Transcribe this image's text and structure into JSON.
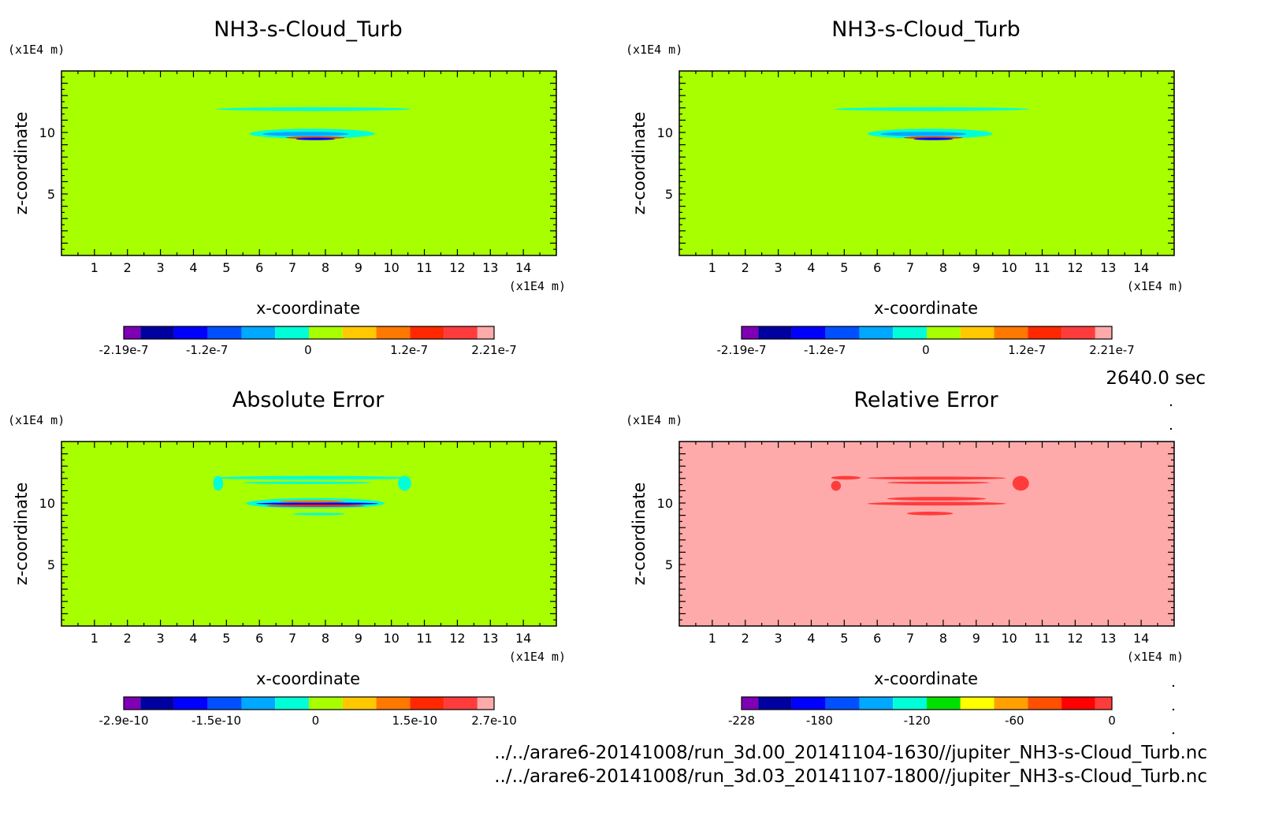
{
  "footer": {
    "time": "2640.0 sec",
    "file1": "../../arare6-20141008/run_3d.00_20141104-1630//jupiter_NH3-s-Cloud_Turb.nc",
    "file2": "../../arare6-20141008/run_3d.03_20141107-1800//jupiter_NH3-s-Cloud_Turb.nc"
  },
  "colors": {
    "background": "#a8ff00",
    "relative_background": "#ffaaaa",
    "palette_default": [
      "#7f00b4",
      "#0000a0",
      "#0000ff",
      "#0050ff",
      "#00a8ff",
      "#00ffd8",
      "#a8ff00",
      "#ffc800",
      "#ff7800",
      "#ff2800",
      "#ff3c3c",
      "#ffaaaa"
    ],
    "palette_relative": [
      "#7f00b4",
      "#0000a0",
      "#0000ff",
      "#0050ff",
      "#00a8ff",
      "#00ffd8",
      "#00e000",
      "#ffff00",
      "#ffa000",
      "#ff5000",
      "#ff0000",
      "#ff3c3c"
    ]
  },
  "chart_data": [
    {
      "type": "heatmap",
      "title": "NH3-s-Cloud_Turb",
      "xlabel": "x-coordinate",
      "ylabel": "z-coordinate",
      "x_unit": "(x1E4 m)",
      "y_unit": "(x1E4 m)",
      "xlim": [
        0,
        15
      ],
      "ylim": [
        0,
        15
      ],
      "xticks": [
        "1",
        "2",
        "3",
        "4",
        "5",
        "6",
        "7",
        "8",
        "9",
        "10",
        "11",
        "12",
        "13",
        "14"
      ],
      "yticks": [
        "5",
        "10"
      ],
      "background": "#a8ff00",
      "colorbar_ticks": [
        "-2.19e-7",
        "-1.2e-7",
        "0",
        "1.2e-7",
        "2.21e-7"
      ],
      "colorbar_range": [
        -2.19e-07,
        2.21e-07
      ],
      "features": [
        {
          "xr": [
            4.7,
            10.6
          ],
          "z": [
            11.75,
            12.05
          ],
          "color": "#00ffd8"
        },
        {
          "xr": [
            5.7,
            9.5
          ],
          "z": [
            9.5,
            10.3
          ],
          "color": "#00ffd8"
        },
        {
          "xr": [
            6.1,
            8.7
          ],
          "z": [
            9.7,
            10.05
          ],
          "color": "#00a8ff"
        },
        {
          "xr": [
            6.8,
            8.6
          ],
          "z": [
            9.5,
            9.65
          ],
          "color": "#ff2800"
        },
        {
          "xr": [
            7.1,
            8.3
          ],
          "z": [
            9.42,
            9.52
          ],
          "color": "#0000ff"
        }
      ]
    },
    {
      "type": "heatmap",
      "title": "NH3-s-Cloud_Turb",
      "xlabel": "x-coordinate",
      "ylabel": "z-coordinate",
      "x_unit": "(x1E4 m)",
      "y_unit": "(x1E4 m)",
      "xlim": [
        0,
        15
      ],
      "ylim": [
        0,
        15
      ],
      "xticks": [
        "1",
        "2",
        "3",
        "4",
        "5",
        "6",
        "7",
        "8",
        "9",
        "10",
        "11",
        "12",
        "13",
        "14"
      ],
      "yticks": [
        "5",
        "10"
      ],
      "background": "#a8ff00",
      "colorbar_ticks": [
        "-2.19e-7",
        "-1.2e-7",
        "0",
        "1.2e-7",
        "2.21e-7"
      ],
      "colorbar_range": [
        -2.19e-07,
        2.21e-07
      ],
      "features": [
        {
          "xr": [
            4.7,
            10.6
          ],
          "z": [
            11.75,
            12.05
          ],
          "color": "#00ffd8"
        },
        {
          "xr": [
            5.7,
            9.5
          ],
          "z": [
            9.5,
            10.3
          ],
          "color": "#00ffd8"
        },
        {
          "xr": [
            6.1,
            8.7
          ],
          "z": [
            9.7,
            10.05
          ],
          "color": "#00a8ff"
        },
        {
          "xr": [
            6.8,
            8.6
          ],
          "z": [
            9.5,
            9.65
          ],
          "color": "#ff2800"
        },
        {
          "xr": [
            7.1,
            8.3
          ],
          "z": [
            9.42,
            9.52
          ],
          "color": "#0000ff"
        }
      ]
    },
    {
      "type": "heatmap",
      "title": "Absolute Error",
      "xlabel": "x-coordinate",
      "ylabel": "z-coordinate",
      "x_unit": "(x1E4 m)",
      "y_unit": "(x1E4 m)",
      "xlim": [
        0,
        15
      ],
      "ylim": [
        0,
        15
      ],
      "xticks": [
        "1",
        "2",
        "3",
        "4",
        "5",
        "6",
        "7",
        "8",
        "9",
        "10",
        "11",
        "12",
        "13",
        "14"
      ],
      "yticks": [
        "5",
        "10"
      ],
      "background": "#a8ff00",
      "colorbar_ticks": [
        "-2.9e-10",
        "-1.5e-10",
        "0",
        "1.5e-10",
        "2.7e-10"
      ],
      "colorbar_range": [
        -2.9e-10,
        2.7e-10
      ],
      "features": [
        {
          "xr": [
            4.6,
            10.6
          ],
          "z": [
            11.9,
            12.2
          ],
          "color": "#00ffd8"
        },
        {
          "xr": [
            5.5,
            9.4
          ],
          "z": [
            11.55,
            11.75
          ],
          "color": "#00ffd8"
        },
        {
          "xr": [
            4.6,
            4.9
          ],
          "z": [
            11.0,
            12.2
          ],
          "color": "#00ffd8"
        },
        {
          "xr": [
            10.2,
            10.6
          ],
          "z": [
            11.0,
            12.2
          ],
          "color": "#00ffd8"
        },
        {
          "xr": [
            5.6,
            9.8
          ],
          "z": [
            9.55,
            10.4
          ],
          "color": "#00ffd8"
        },
        {
          "xr": [
            5.9,
            9.6
          ],
          "z": [
            9.85,
            10.05
          ],
          "color": "#0000ff"
        },
        {
          "xr": [
            6.2,
            9.2
          ],
          "z": [
            9.7,
            9.85
          ],
          "color": "#ff2800"
        },
        {
          "xr": [
            6.6,
            8.6
          ],
          "z": [
            10.05,
            10.2
          ],
          "color": "#ff7800"
        },
        {
          "xr": [
            7.0,
            8.6
          ],
          "z": [
            9.0,
            9.2
          ],
          "color": "#00ffd8"
        }
      ]
    },
    {
      "type": "heatmap",
      "title": "Relative Error",
      "xlabel": "x-coordinate",
      "ylabel": "z-coordinate",
      "x_unit": "(x1E4 m)",
      "y_unit": "(x1E4 m)",
      "xlim": [
        0,
        15
      ],
      "ylim": [
        0,
        15
      ],
      "xticks": [
        "1",
        "2",
        "3",
        "4",
        "5",
        "6",
        "7",
        "8",
        "9",
        "10",
        "11",
        "12",
        "13",
        "14"
      ],
      "yticks": [
        "5",
        "10"
      ],
      "background": "#ffaaaa",
      "colorbar_ticks": [
        "-228",
        "-180",
        "-120",
        "-60",
        "0"
      ],
      "colorbar_range": [
        -228,
        0
      ],
      "features": [
        {
          "xr": [
            4.6,
            5.5
          ],
          "z": [
            11.9,
            12.2
          ],
          "color": "#ff3c3c"
        },
        {
          "xr": [
            5.7,
            9.9
          ],
          "z": [
            11.9,
            12.15
          ],
          "color": "#ff3c3c"
        },
        {
          "xr": [
            6.3,
            9.4
          ],
          "z": [
            11.55,
            11.75
          ],
          "color": "#ff3c3c"
        },
        {
          "xr": [
            10.1,
            10.6
          ],
          "z": [
            11.0,
            12.2
          ],
          "color": "#ff3c3c"
        },
        {
          "xr": [
            4.6,
            4.9
          ],
          "z": [
            11.0,
            11.8
          ],
          "color": "#ff3c3c"
        },
        {
          "xr": [
            5.7,
            9.9
          ],
          "z": [
            9.8,
            10.1
          ],
          "color": "#ff3c3c"
        },
        {
          "xr": [
            6.3,
            9.3
          ],
          "z": [
            10.2,
            10.5
          ],
          "color": "#ff3c3c"
        },
        {
          "xr": [
            6.9,
            8.3
          ],
          "z": [
            9.0,
            9.3
          ],
          "color": "#ff3c3c"
        }
      ]
    }
  ]
}
